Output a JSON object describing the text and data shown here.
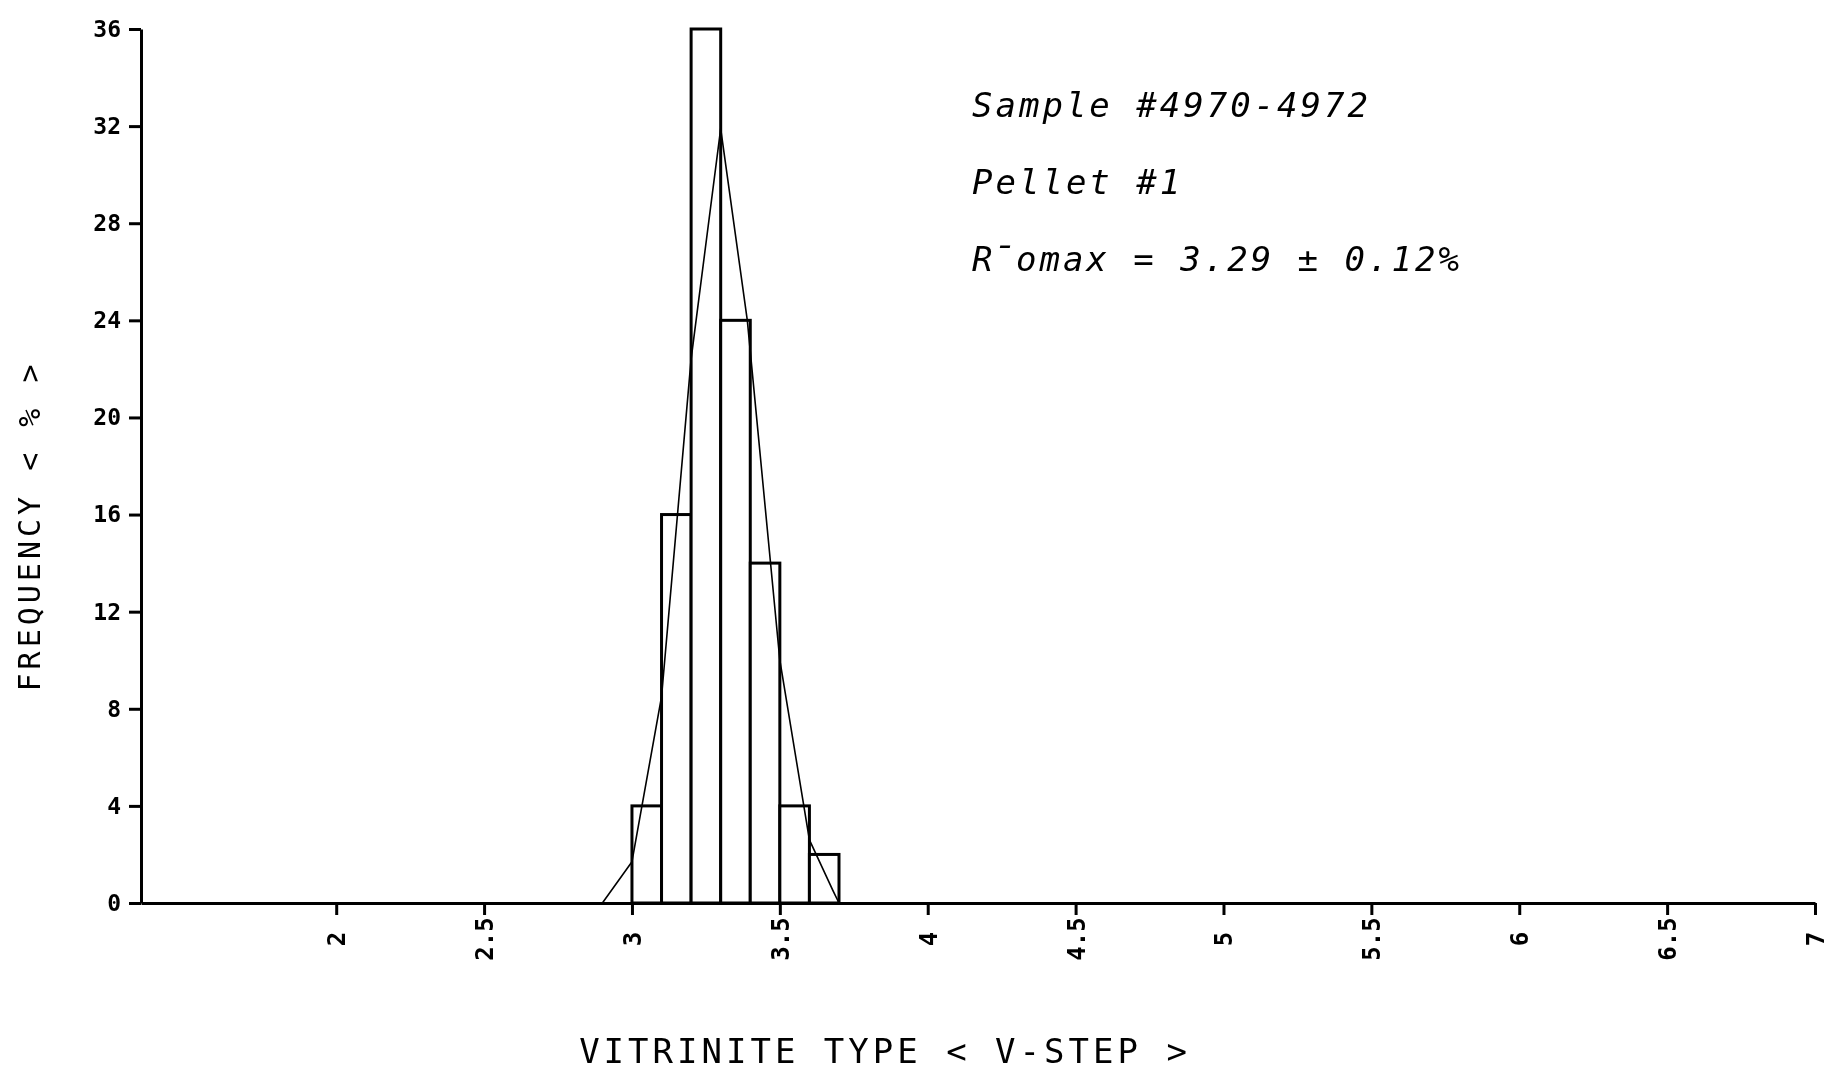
{
  "chart_data": {
    "type": "histogram",
    "xlabel": "VITRINITE TYPE < V-STEP >",
    "ylabel": "FREQUENCY < % >",
    "annotations": [
      "Sample #4970-4972",
      "Pellet #1",
      "R̄omax = 3.29 ± 0.12%"
    ],
    "bins": [
      3.0,
      3.1,
      3.2,
      3.3,
      3.4,
      3.5,
      3.6,
      3.7
    ],
    "values": [
      4,
      16,
      36,
      24,
      14,
      4,
      2
    ],
    "color": "#000000",
    "series": [
      {
        "type": "line",
        "color": "#000000",
        "x": [
          2.9,
          3.0,
          3.1,
          3.2,
          3.3,
          3.39,
          3.5,
          3.6,
          3.68,
          3.7
        ],
        "values": [
          0,
          1.7,
          8.5,
          22.4,
          31.9,
          24,
          10,
          2.6,
          0.5,
          0
        ]
      }
    ],
    "xlim": [
      1.34,
      7
    ],
    "xticks": [
      2,
      2.5,
      3,
      3.5,
      4,
      4.5,
      5,
      5.5,
      6,
      6.5,
      7
    ],
    "ylim": [
      0,
      36
    ],
    "yticks": [
      0,
      4,
      8,
      12,
      16,
      20,
      24,
      28,
      32,
      36
    ],
    "grid": false
  }
}
